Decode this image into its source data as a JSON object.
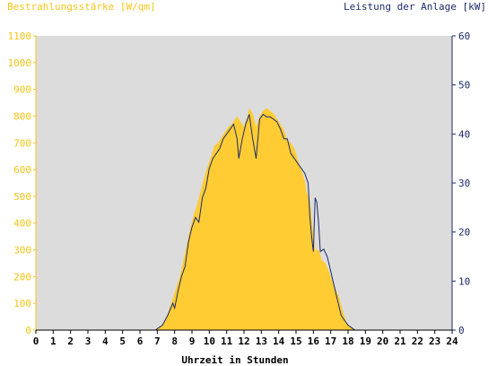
{
  "chart_data": {
    "type": "area",
    "title": "",
    "left_axis_label": "Bestrahlungsstärke [W/qm]",
    "right_axis_label": "Leistung der Anlage [kW]",
    "xlabel": "Uhrzeit in Stunden",
    "xlim": [
      0,
      24
    ],
    "ylim_left": [
      0,
      1100
    ],
    "ylim_right": [
      0,
      60
    ],
    "x_ticks": [
      "0",
      "1",
      "2",
      "3",
      "4",
      "5",
      "6",
      "7",
      "8",
      "9",
      "10",
      "11",
      "12",
      "13",
      "14",
      "15",
      "16",
      "17",
      "18",
      "19",
      "20",
      "21",
      "22",
      "23",
      "24"
    ],
    "y_ticks_left": [
      "0",
      "100",
      "200",
      "300",
      "400",
      "500",
      "600",
      "700",
      "800",
      "900",
      "1000",
      "1100"
    ],
    "y_ticks_right": [
      "0",
      "10",
      "20",
      "30",
      "40",
      "50",
      "60"
    ],
    "grid": false,
    "colors": {
      "plot_background": "#dcdcdc",
      "irradiance": "#ffcc33",
      "power": "#1c2a6b",
      "left_axis": "#f5c518",
      "right_axis": "#1c2a6b"
    },
    "series": [
      {
        "axis": "left",
        "style": "area",
        "x": [
          6.9,
          7.0,
          7.3,
          7.6,
          7.9,
          8.1,
          8.3,
          8.5,
          8.7,
          8.9,
          9.1,
          9.3,
          9.5,
          9.7,
          9.9,
          10.1,
          10.3,
          10.5,
          10.7,
          10.9,
          11.1,
          11.3,
          11.5,
          11.6,
          11.8,
          12.0,
          12.2,
          12.3,
          12.5,
          12.7,
          12.9,
          13.1,
          13.3,
          13.5,
          13.7,
          13.9,
          14.1,
          14.3,
          14.5,
          14.7,
          14.9,
          15.1,
          15.3,
          15.5,
          15.6,
          15.8,
          15.9,
          16.0,
          16.1,
          16.3,
          16.5,
          16.7,
          16.9,
          17.1,
          17.3,
          17.5,
          17.7,
          17.9,
          18.1,
          18.3,
          18.5
        ],
        "y": [
          0,
          5,
          20,
          60,
          120,
          160,
          200,
          260,
          320,
          380,
          430,
          470,
          520,
          570,
          610,
          650,
          690,
          700,
          720,
          740,
          760,
          770,
          790,
          800,
          780,
          760,
          800,
          830,
          810,
          760,
          800,
          820,
          830,
          820,
          810,
          790,
          770,
          750,
          710,
          700,
          680,
          640,
          600,
          560,
          520,
          480,
          420,
          360,
          300,
          300,
          260,
          250,
          220,
          180,
          150,
          120,
          70,
          30,
          15,
          5,
          0
        ]
      },
      {
        "axis": "right",
        "style": "line",
        "x": [
          6.9,
          7.0,
          7.3,
          7.6,
          7.9,
          8.0,
          8.2,
          8.4,
          8.6,
          8.8,
          9.0,
          9.2,
          9.4,
          9.6,
          9.8,
          10.0,
          10.2,
          10.4,
          10.6,
          10.8,
          11.0,
          11.2,
          11.4,
          11.6,
          11.7,
          11.9,
          12.1,
          12.3,
          12.5,
          12.7,
          12.9,
          13.1,
          13.3,
          13.5,
          13.7,
          13.9,
          14.1,
          14.3,
          14.5,
          14.7,
          14.9,
          15.1,
          15.3,
          15.5,
          15.7,
          15.8,
          15.9,
          16.0,
          16.1,
          16.2,
          16.3,
          16.4,
          16.6,
          16.8,
          17.0,
          17.2,
          17.4,
          17.6,
          17.8,
          18.0,
          18.2,
          18.4
        ],
        "y": [
          0,
          0.3,
          1.0,
          3.0,
          5.5,
          4.5,
          8.0,
          11.0,
          13.0,
          18.0,
          21.0,
          23.0,
          22.0,
          27.0,
          29.0,
          33.0,
          35.0,
          36.0,
          37.0,
          39.0,
          40.0,
          41.0,
          42.0,
          39.0,
          35.0,
          39.0,
          42.0,
          44.0,
          39.0,
          35.0,
          43.0,
          44.0,
          43.5,
          43.5,
          43.0,
          42.5,
          41.0,
          39.0,
          39.0,
          36.0,
          35.0,
          34.0,
          33.0,
          32.0,
          30.0,
          23.0,
          19.0,
          16.0,
          27.0,
          26.0,
          22.0,
          16.0,
          16.5,
          15.0,
          12.0,
          9.0,
          6.0,
          3.0,
          2.0,
          1.0,
          0.5,
          0
        ]
      }
    ]
  }
}
